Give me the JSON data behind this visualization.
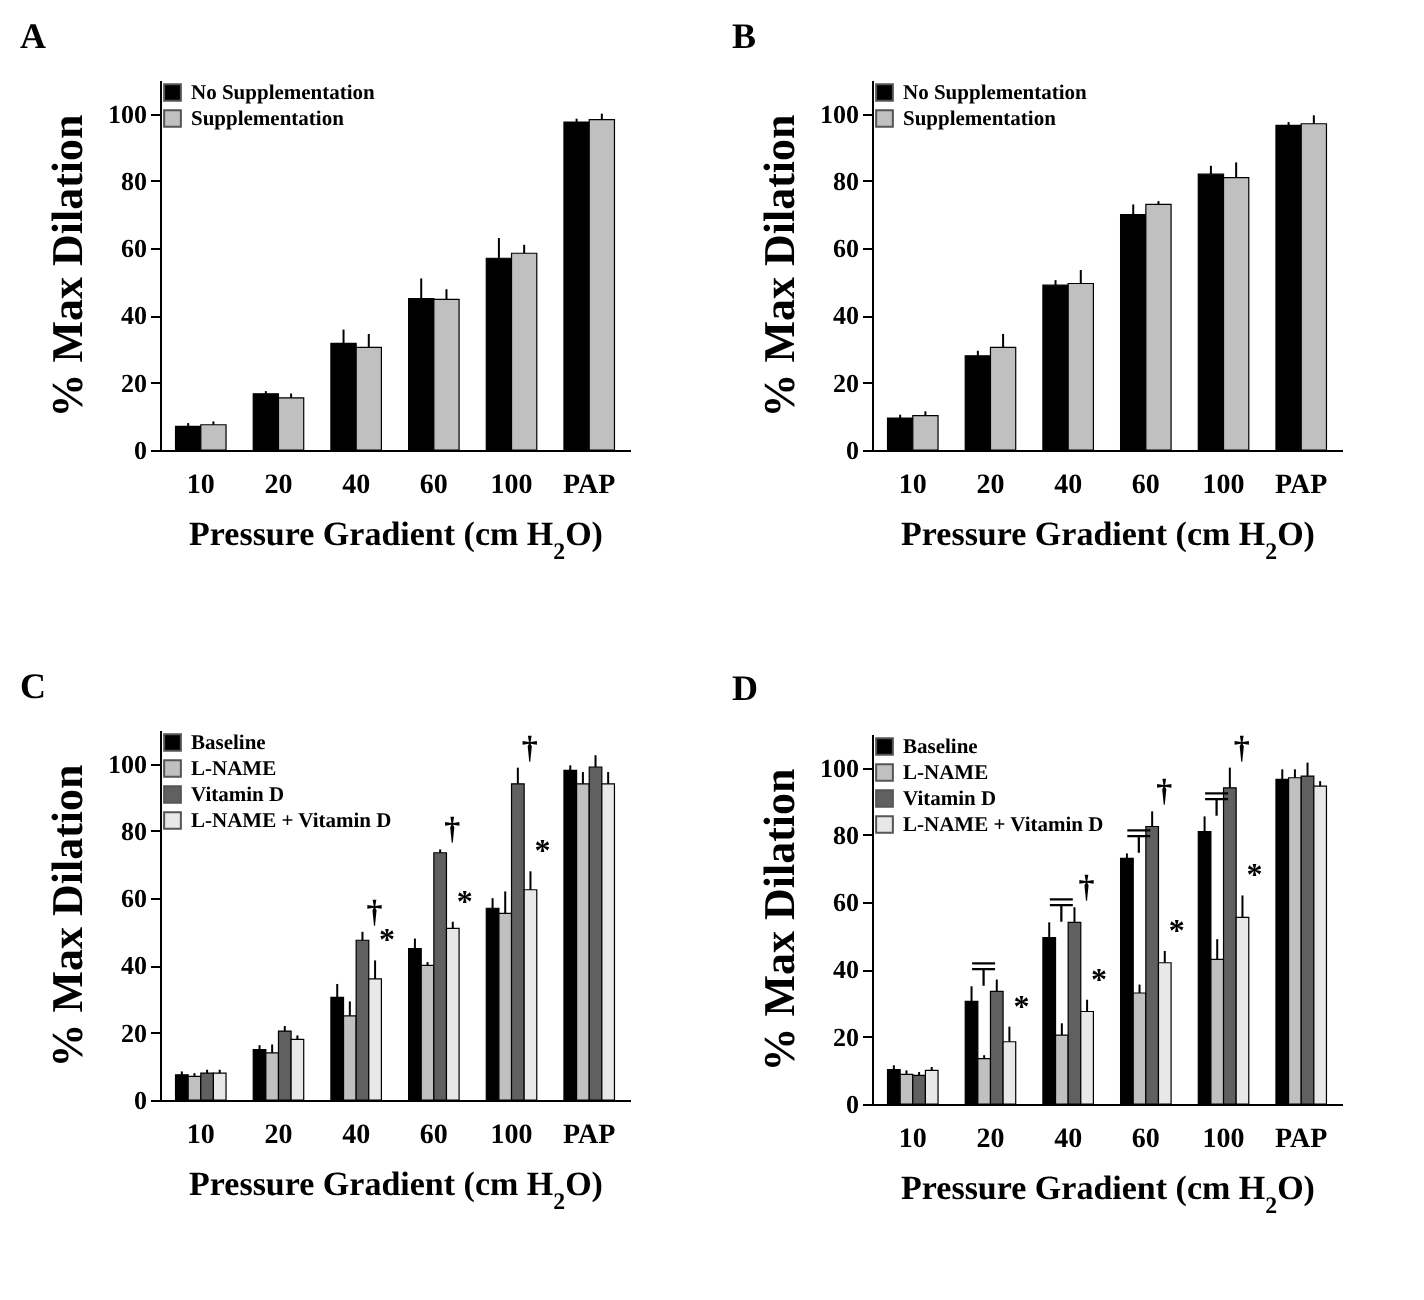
{
  "chart_data": [
    {
      "type": "bar",
      "title": "A",
      "xlabel": "Pressure Gradient (cm H$_{2}$O)",
      "ylabel": "% Max Dilation",
      "categories": [
        "10",
        "20",
        "40",
        "60",
        "100",
        "PAP"
      ],
      "ylim": [
        0,
        110
      ],
      "yticks": [
        0,
        20,
        40,
        60,
        80,
        100
      ],
      "legend": "top left",
      "grid": false,
      "series": [
        {
          "name": "No Supplementation",
          "color": "#000000",
          "values": [
            7,
            16.7,
            31.7,
            45,
            57,
            97.5
          ],
          "errors": [
            [
              7,
              8
            ],
            [
              16.7,
              17.5
            ],
            [
              31.7,
              35.8
            ],
            [
              45,
              51
            ],
            [
              57,
              63
            ],
            [
              97.5,
              98.5
            ]
          ]
        },
        {
          "name": "Supplementation",
          "color": "#c0c0c0",
          "values": [
            7.5,
            15.5,
            30.5,
            44.8,
            58.5,
            98.2
          ],
          "errors": [
            [
              7.5,
              8.5
            ],
            [
              15.5,
              16.8
            ],
            [
              30.5,
              34.5
            ],
            [
              44.8,
              47.8
            ],
            [
              58.5,
              61
            ],
            [
              98.2,
              100
            ]
          ]
        }
      ]
    },
    {
      "type": "bar",
      "title": "B",
      "xlabel": "Pressure Gradient (cm H$_{2}$O)",
      "ylabel": "% Max Dilation",
      "categories": [
        "10",
        "20",
        "40",
        "60",
        "100",
        "PAP"
      ],
      "ylim": [
        0,
        110
      ],
      "yticks": [
        0,
        20,
        40,
        60,
        80,
        100
      ],
      "legend": "top left",
      "grid": false,
      "series": [
        {
          "name": "No Supplementation",
          "color": "#000000",
          "values": [
            9.5,
            28,
            49,
            70,
            82,
            96.5
          ],
          "errors": [
            [
              9.5,
              10.5
            ],
            [
              28,
              29.5
            ],
            [
              49,
              50.5
            ],
            [
              70,
              73
            ],
            [
              82,
              84.5
            ],
            [
              96.5,
              97.5
            ]
          ]
        },
        {
          "name": "Supplementation",
          "color": "#c0c0c0",
          "values": [
            10.2,
            30.5,
            49.5,
            73,
            81,
            97
          ],
          "errors": [
            [
              10.2,
              11.5
            ],
            [
              30.5,
              34.5
            ],
            [
              49.5,
              53.5
            ],
            [
              73,
              74
            ],
            [
              81,
              85.5
            ],
            [
              97,
              99.5
            ]
          ]
        }
      ]
    },
    {
      "type": "bar",
      "title": "C",
      "xlabel": "Pressure Gradient (cm H$_{2}$O)",
      "ylabel": "% Max Dilation",
      "categories": [
        "10",
        "20",
        "40",
        "60",
        "100",
        "PAP"
      ],
      "ylim": [
        0,
        110
      ],
      "yticks": [
        0,
        20,
        40,
        60,
        80,
        100
      ],
      "legend": "top left",
      "grid": false,
      "series": [
        {
          "name": "Baseline",
          "color": "#000000",
          "values": [
            7.5,
            15,
            30.5,
            45,
            57,
            98
          ],
          "errors": [
            [
              7.5,
              8.5
            ],
            [
              15,
              16.3
            ],
            [
              30.5,
              34.5
            ],
            [
              45,
              48
            ],
            [
              57,
              60
            ],
            [
              98,
              99.5
            ]
          ]
        },
        {
          "name": "L-NAME",
          "color": "#c0c0c0",
          "values": [
            7,
            14,
            25,
            40,
            55.5,
            94
          ],
          "errors": [
            [
              7,
              8
            ],
            [
              14,
              16.5
            ],
            [
              25,
              29.3
            ],
            [
              40,
              41
            ],
            [
              55.5,
              62
            ],
            [
              94,
              97.5
            ]
          ]
        },
        {
          "name": "Vitamin D",
          "color": "#606060",
          "values": [
            8,
            20.5,
            47.5,
            73.5,
            94,
            99
          ],
          "errors": [
            [
              8,
              9
            ],
            [
              20.5,
              22
            ],
            [
              47.5,
              50
            ],
            [
              73.5,
              74.5
            ],
            [
              94,
              98.8
            ],
            [
              99,
              102.5
            ]
          ]
        },
        {
          "name": "L-NAME + Vitamin D",
          "color": "#e8e8e8",
          "values": [
            8,
            18,
            36,
            51,
            62.5,
            94
          ],
          "errors": [
            [
              8,
              9
            ],
            [
              18,
              19.2
            ],
            [
              36,
              41.5
            ],
            [
              51,
              53
            ],
            [
              62.5,
              68
            ],
            [
              94,
              97.5
            ]
          ]
        }
      ],
      "annotations": [
        {
          "text": "†",
          "x": "40",
          "y": 50
        },
        {
          "text": "†",
          "x": "60",
          "y": 74.5
        },
        {
          "text": "†",
          "x": "100",
          "y": 98.8
        },
        {
          "text": "*",
          "x": "40",
          "y": 41.5
        },
        {
          "text": "*",
          "x": "60",
          "y": 53
        },
        {
          "text": "*",
          "x": "100",
          "y": 68
        }
      ]
    },
    {
      "type": "bar",
      "title": "D",
      "xlabel": "Pressure Gradient (cm H$_{2}$O)",
      "ylabel": "% Max Dilation",
      "categories": [
        "10",
        "20",
        "40",
        "60",
        "100",
        "PAP"
      ],
      "ylim": [
        0,
        110
      ],
      "yticks": [
        0,
        20,
        40,
        60,
        80,
        100
      ],
      "legend": "top left",
      "grid": false,
      "series": [
        {
          "name": "Baseline",
          "color": "#000000",
          "values": [
            10.2,
            30.5,
            49.5,
            73,
            81,
            96.5
          ],
          "errors": [
            [
              10.2,
              11.5
            ],
            [
              30.5,
              35
            ],
            [
              49.5,
              54
            ],
            [
              73,
              74.5
            ],
            [
              81,
              85.5
            ],
            [
              96.5,
              99.5
            ]
          ]
        },
        {
          "name": "L-NAME",
          "color": "#c0c0c0",
          "values": [
            8.8,
            13.5,
            20.5,
            33,
            43,
            97
          ],
          "errors": [
            [
              8.8,
              10
            ],
            [
              13.5,
              14.5
            ],
            [
              20.5,
              24
            ],
            [
              33,
              35.5
            ],
            [
              43,
              49
            ],
            [
              97,
              99.5
            ]
          ]
        },
        {
          "name": "Vitamin D",
          "color": "#606060",
          "values": [
            8.5,
            33.5,
            54,
            82.5,
            94,
            97.5
          ],
          "errors": [
            [
              8.5,
              9.5
            ],
            [
              33.5,
              37
            ],
            [
              54,
              58.5
            ],
            [
              82.5,
              87
            ],
            [
              94,
              100
            ],
            [
              97.5,
              101.5
            ]
          ]
        },
        {
          "name": "L-NAME + Vitamin D",
          "color": "#e8e8e8",
          "values": [
            10,
            18.5,
            27.5,
            42,
            55.5,
            94.5
          ],
          "errors": [
            [
              10,
              11
            ],
            [
              18.5,
              23
            ],
            [
              27.5,
              31
            ],
            [
              42,
              45.5
            ],
            [
              55.5,
              62
            ],
            [
              94.5,
              96
            ]
          ]
        }
      ],
      "annotations": [
        {
          "text": "╤",
          "x": "20",
          "y": 35
        },
        {
          "text": "╤",
          "x": "40",
          "y": 54
        },
        {
          "text": "╤",
          "x": "60",
          "y": 74.5
        },
        {
          "text": "╤",
          "x": "100",
          "y": 85.5
        },
        {
          "text": "†",
          "x": "40",
          "y": 58.5
        },
        {
          "text": "†",
          "x": "60",
          "y": 87
        },
        {
          "text": "†",
          "x": "100",
          "y": 100
        },
        {
          "text": "*",
          "x": "20",
          "y": 23
        },
        {
          "text": "*",
          "x": "40",
          "y": 31
        },
        {
          "text": "*",
          "x": "60",
          "y": 45.5
        },
        {
          "text": "*",
          "x": "100",
          "y": 62
        }
      ]
    }
  ]
}
